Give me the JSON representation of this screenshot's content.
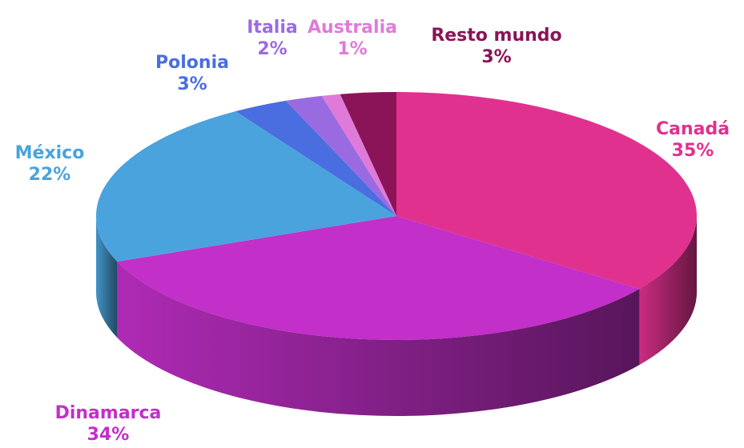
{
  "chart_data": {
    "type": "pie",
    "categories": [
      "Canadá",
      "Dinamarca",
      "México",
      "Polonia",
      "Italia",
      "Australia",
      "Resto mundo"
    ],
    "values": [
      35,
      34,
      22,
      3,
      2,
      1,
      3
    ],
    "value_labels": [
      "35%",
      "34%",
      "22%",
      "3%",
      "2%",
      "1%",
      "3%"
    ],
    "colors": [
      "#e0318f",
      "#c22fc9",
      "#4aa3dc",
      "#4a6ee0",
      "#9a6be0",
      "#e07ad9",
      "#8a1457"
    ]
  }
}
